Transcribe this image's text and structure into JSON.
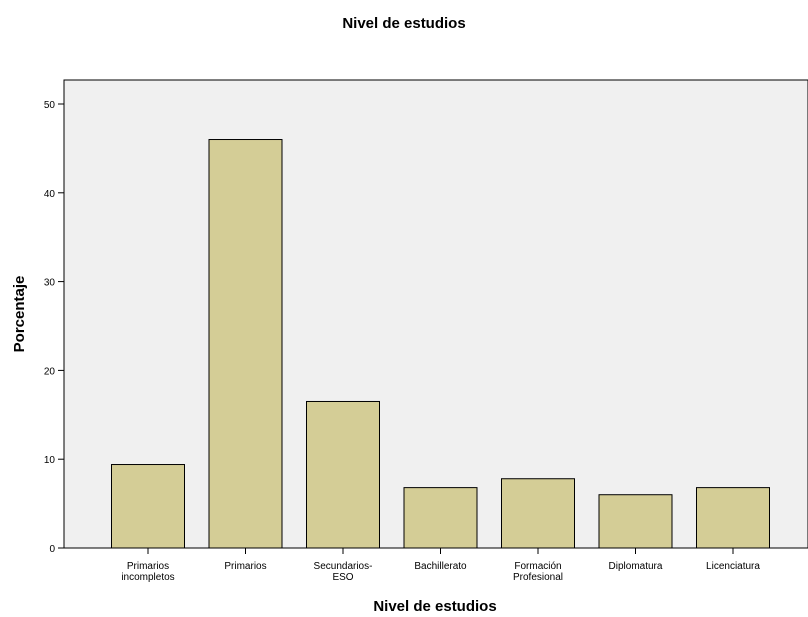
{
  "chart_data": {
    "type": "bar",
    "title": "Nivel de estudios",
    "xlabel": "Nivel de estudios",
    "ylabel": "Porcentaje",
    "categories": [
      [
        "Primarios",
        "incompletos"
      ],
      [
        "Primarios"
      ],
      [
        "Secundarios-",
        "ESO"
      ],
      [
        "Bachillerato"
      ],
      [
        "Formación",
        "Profesional"
      ],
      [
        "Diplomatura"
      ],
      [
        "Licenciatura"
      ]
    ],
    "values": [
      9.4,
      46.0,
      16.5,
      6.8,
      7.8,
      6.0,
      6.8
    ],
    "ylim": [
      0,
      50
    ],
    "yticks": [
      0,
      10,
      20,
      30,
      40,
      50
    ],
    "grid": false,
    "colors": {
      "plot_background": "#f0f0f0",
      "bar_fill": "#d4cd96",
      "bar_stroke": "#000000"
    }
  }
}
